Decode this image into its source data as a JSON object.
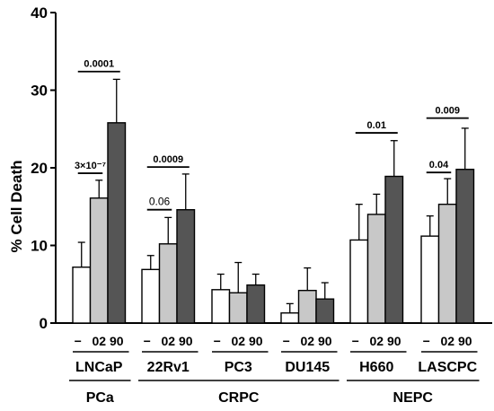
{
  "chart_data": {
    "type": "bar",
    "ylabel": "% Cell Death",
    "ylim": [
      0,
      40
    ],
    "yticks": [
      0,
      10,
      20,
      30,
      40
    ],
    "grid": false,
    "conditions": [
      "−",
      "02",
      "90"
    ],
    "condition_colors": [
      "#ffffff",
      "#c8c8c8",
      "#555555"
    ],
    "cell_lines": [
      "LNCaP",
      "22Rv1",
      "PC3",
      "DU145",
      "H660",
      "LASCPC"
    ],
    "values": [
      [
        7.2,
        16.1,
        25.8
      ],
      [
        6.9,
        10.2,
        14.6
      ],
      [
        4.3,
        3.9,
        4.9
      ],
      [
        1.3,
        4.2,
        3.1
      ],
      [
        10.7,
        14.0,
        18.9
      ],
      [
        11.2,
        15.3,
        19.8
      ]
    ],
    "errors": [
      [
        3.2,
        2.3,
        5.6
      ],
      [
        1.8,
        3.4,
        4.6
      ],
      [
        2.0,
        3.9,
        1.4
      ],
      [
        1.2,
        2.9,
        2.1
      ],
      [
        4.6,
        2.6,
        4.6
      ],
      [
        2.6,
        3.3,
        5.3
      ]
    ],
    "groups": [
      {
        "label": "PCa",
        "start": 0,
        "end": 0
      },
      {
        "label": "CRPC",
        "start": 1,
        "end": 3
      },
      {
        "label": "NEPC",
        "start": 4,
        "end": 5
      }
    ],
    "annotations": [
      {
        "cell": 0,
        "from": 0,
        "to": 1,
        "text": "3×10⁻⁷",
        "y": 19.3,
        "bold": true
      },
      {
        "cell": 0,
        "from": 0,
        "to": 2,
        "text": "0.0001",
        "y": 32.4,
        "bold": true
      },
      {
        "cell": 1,
        "from": 0,
        "to": 1,
        "text": "0.06",
        "y": 14.6,
        "bold": false
      },
      {
        "cell": 1,
        "from": 0,
        "to": 2,
        "text": "0.0009",
        "y": 20.1,
        "bold": true
      },
      {
        "cell": 4,
        "from": 0,
        "to": 2,
        "text": "0.01",
        "y": 24.5,
        "bold": true
      },
      {
        "cell": 5,
        "from": 0,
        "to": 1,
        "text": "0.04",
        "y": 19.4,
        "bold": true
      },
      {
        "cell": 5,
        "from": 0,
        "to": 2,
        "text": "0.009",
        "y": 26.4,
        "bold": true
      }
    ]
  }
}
